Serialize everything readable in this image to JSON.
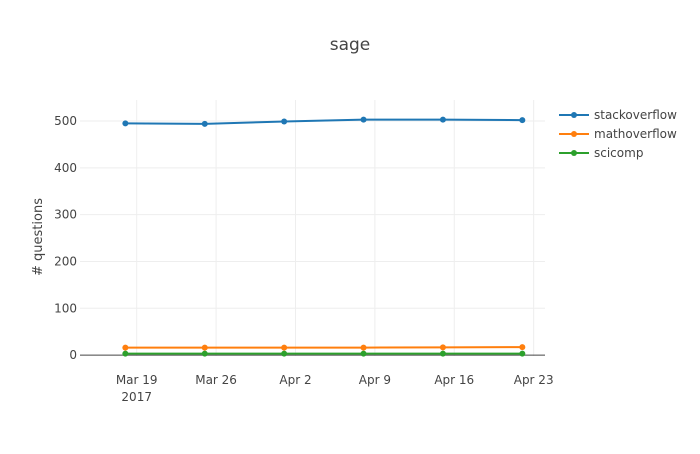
{
  "chart_data": {
    "type": "line",
    "title": "sage",
    "xlabel": "",
    "ylabel": "# questions",
    "x_type": "date",
    "x": [
      "2017-03-18",
      "2017-03-25",
      "2017-04-01",
      "2017-04-08",
      "2017-04-15",
      "2017-04-22"
    ],
    "xlim": [
      "2017-03-14",
      "2017-04-24"
    ],
    "ylim": [
      -2,
      545
    ],
    "x_ticks": [
      {
        "date": "2017-03-19",
        "label": "Mar 19",
        "sublabel": "2017"
      },
      {
        "date": "2017-03-26",
        "label": "Mar 26",
        "sublabel": ""
      },
      {
        "date": "2017-04-02",
        "label": "Apr 2",
        "sublabel": ""
      },
      {
        "date": "2017-04-09",
        "label": "Apr 9",
        "sublabel": ""
      },
      {
        "date": "2017-04-16",
        "label": "Apr 16",
        "sublabel": ""
      },
      {
        "date": "2017-04-23",
        "label": "Apr 23",
        "sublabel": ""
      }
    ],
    "y_ticks": [
      0,
      100,
      200,
      300,
      400,
      500
    ],
    "grid": true,
    "legend_position": "top-right",
    "series": [
      {
        "name": "stackoverflow",
        "color": "#1f77b4",
        "values": [
          495,
          494,
          499,
          503,
          503,
          502
        ]
      },
      {
        "name": "mathoverflow",
        "color": "#ff7f0e",
        "values": [
          16,
          16,
          16,
          16,
          16.5,
          17
        ]
      },
      {
        "name": "scicomp",
        "color": "#2ca02c",
        "values": [
          3,
          3,
          3,
          3,
          3,
          3
        ]
      }
    ]
  }
}
